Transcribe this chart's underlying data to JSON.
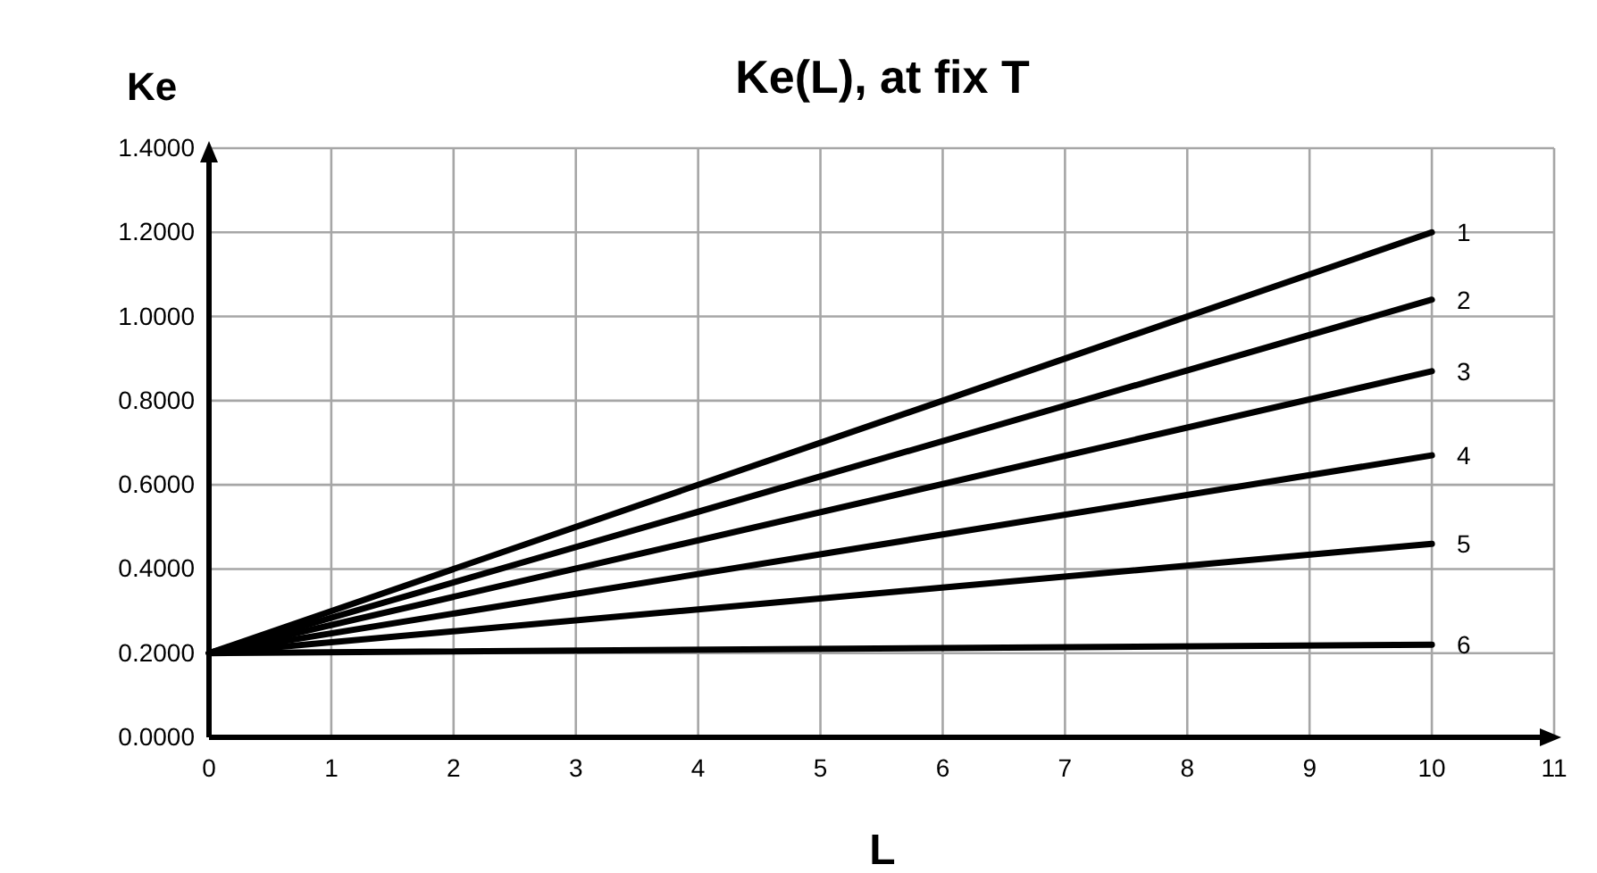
{
  "chart_data": {
    "type": "line",
    "title": "Ke(L), at fix T",
    "xlabel": "L",
    "ylabel": "Ke",
    "xlim": [
      0,
      11
    ],
    "xticks": [
      0,
      1,
      2,
      3,
      4,
      5,
      6,
      7,
      8,
      9,
      10,
      11
    ],
    "ylim": [
      0,
      1.4
    ],
    "yticks": [
      {
        "value": 0,
        "label": "0.0000"
      },
      {
        "value": 0.2,
        "label": "0.2000"
      },
      {
        "value": 0.4,
        "label": "0.4000"
      },
      {
        "value": 0.6,
        "label": "0.6000"
      },
      {
        "value": 0.8,
        "label": "0.8000"
      },
      {
        "value": 1.0,
        "label": "1.0000"
      },
      {
        "value": 1.2,
        "label": "1.2000"
      },
      {
        "value": 1.4,
        "label": "1.4000"
      }
    ],
    "grid": true,
    "legend": false,
    "marker": "none",
    "line_style": "solid",
    "x": [
      0,
      10
    ],
    "series": [
      {
        "name": "1",
        "color": "#000000",
        "values": [
          0.2,
          1.2
        ]
      },
      {
        "name": "2",
        "color": "#000000",
        "values": [
          0.2,
          1.04
        ]
      },
      {
        "name": "3",
        "color": "#000000",
        "values": [
          0.2,
          0.87
        ]
      },
      {
        "name": "4",
        "color": "#000000",
        "values": [
          0.2,
          0.67
        ]
      },
      {
        "name": "5",
        "color": "#000000",
        "values": [
          0.2,
          0.46
        ]
      },
      {
        "name": "6",
        "color": "#000000",
        "values": [
          0.2,
          0.22
        ]
      }
    ]
  }
}
